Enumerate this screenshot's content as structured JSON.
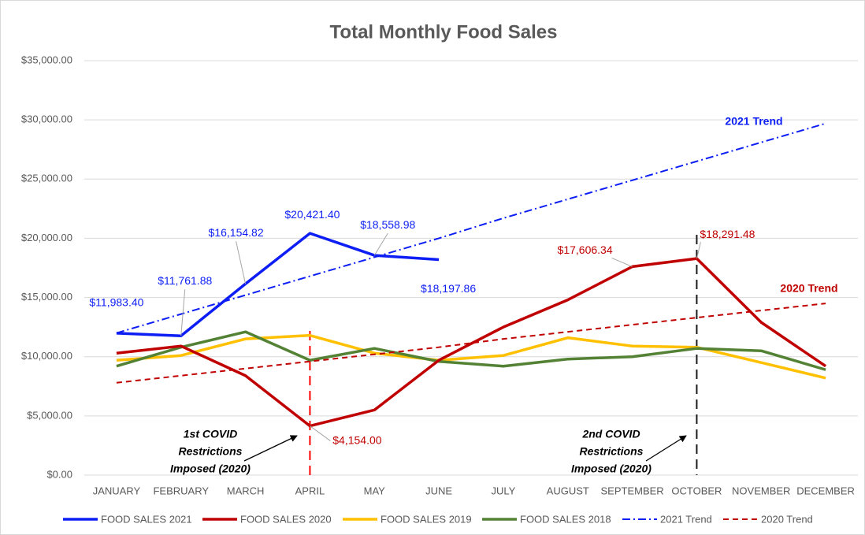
{
  "chart_data": {
    "type": "line",
    "title": "Total Monthly Food Sales",
    "categories": [
      "JANUARY",
      "FEBRUARY",
      "MARCH",
      "APRIL",
      "MAY",
      "JUNE",
      "JULY",
      "AUGUST",
      "SEPTEMBER",
      "OCTOBER",
      "NOVEMBER",
      "DECEMBER"
    ],
    "series": [
      {
        "name": "FOOD SALES 2021",
        "color": "#0d1ef5",
        "dash": "solid",
        "values": [
          11983.4,
          11761.88,
          16154.82,
          20421.4,
          18558.98,
          18197.86,
          null,
          null,
          null,
          null,
          null,
          null
        ],
        "value_labels": [
          "$11,983.40",
          "$11,761.88",
          "$16,154.82",
          "$20,421.40",
          "$18,558.98",
          "$18,197.86",
          null,
          null,
          null,
          null,
          null,
          null
        ]
      },
      {
        "name": "FOOD SALES 2020",
        "color": "#c00000",
        "dash": "solid",
        "values": [
          10300,
          10900,
          8400,
          4154.0,
          5500,
          9700,
          12500,
          14800,
          17606.34,
          18291.48,
          12900,
          9200
        ],
        "value_labels": [
          null,
          null,
          null,
          "$4,154.00",
          null,
          null,
          null,
          null,
          "$17,606.34",
          "$18,291.48",
          null,
          null
        ]
      },
      {
        "name": "FOOD SALES 2019",
        "color": "#ffc000",
        "dash": "solid",
        "values": [
          9700,
          10100,
          11500,
          11800,
          10300,
          9700,
          10100,
          11600,
          10900,
          10800,
          9500,
          8200
        ]
      },
      {
        "name": "FOOD SALES 2018",
        "color": "#548235",
        "dash": "solid",
        "values": [
          9200,
          10800,
          12100,
          9700,
          10700,
          9600,
          9200,
          9800,
          10000,
          10700,
          10500,
          8900
        ]
      },
      {
        "name": "2021 Trend",
        "color": "#0d1ef5",
        "dash": "dash-dot",
        "values": [
          12000,
          13600,
          15200,
          16800,
          18400,
          20000,
          21700,
          23300,
          24900,
          26500,
          28100,
          29700
        ]
      },
      {
        "name": "2020 Trend",
        "color": "#c00000",
        "dash": "dash",
        "values": [
          7800,
          8400,
          9000,
          9600,
          10200,
          10800,
          11500,
          12100,
          12700,
          13300,
          13900,
          14500
        ]
      }
    ],
    "ylim": [
      0,
      35000
    ],
    "yticks": [
      {
        "value": 0,
        "label": "$0.00"
      },
      {
        "value": 5000,
        "label": "$5,000.00"
      },
      {
        "value": 10000,
        "label": "$10,000.00"
      },
      {
        "value": 15000,
        "label": "$15,000.00"
      },
      {
        "value": 20000,
        "label": "$20,000.00"
      },
      {
        "value": 25000,
        "label": "$25,000.00"
      },
      {
        "value": 30000,
        "label": "$30,000.00"
      },
      {
        "value": 35000,
        "label": "$35,000.00"
      }
    ],
    "grid": true,
    "legend": "bottom",
    "annotations": [
      {
        "text": "2021 Trend"
      },
      {
        "text": "2020 Trend"
      },
      {
        "lines": [
          "1st COVID",
          "Restrictions",
          "Imposed (2020)"
        ]
      },
      {
        "lines": [
          "2nd COVID",
          "Restrictions",
          "Imposed (2020)"
        ]
      }
    ]
  }
}
